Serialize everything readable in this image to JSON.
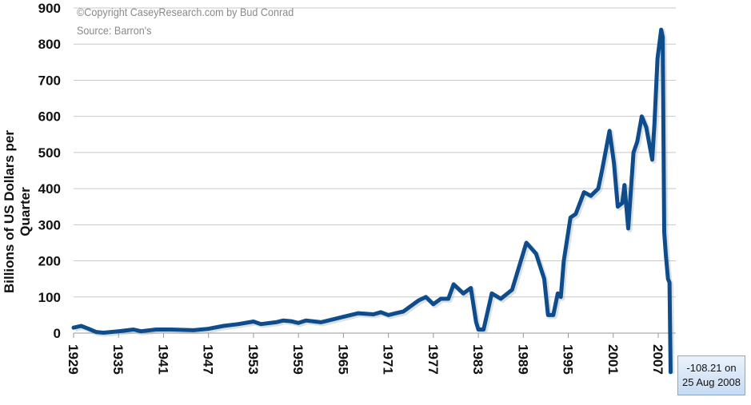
{
  "chart_data": {
    "type": "line",
    "title": "",
    "copyright": "©Copyright CaseyResearch.com by Bud Conrad",
    "source": "Source: Barron's",
    "xlabel": "",
    "ylabel": "Billions of US Dollars per Quarter",
    "ylim": [
      0,
      900
    ],
    "xlim": [
      1929,
      2009
    ],
    "yticks": [
      "0",
      "100",
      "200",
      "300",
      "400",
      "500",
      "600",
      "700",
      "800",
      "900"
    ],
    "xticks": [
      "1929",
      "1935",
      "1941",
      "1947",
      "1953",
      "1959",
      "1965",
      "1971",
      "1977",
      "1983",
      "1989",
      "1995",
      "2001",
      "2007"
    ],
    "grid": true,
    "line_color": "#0f4c8c",
    "annotation": {
      "line1": "-108.21 on",
      "line2": "25 Aug 2008"
    },
    "series": [
      {
        "name": "Billions of US Dollars per Quarter",
        "x": [
          1929,
          1930,
          1931,
          1932,
          1933,
          1934,
          1935,
          1937,
          1938,
          1940,
          1942,
          1945,
          1947,
          1949,
          1951,
          1953,
          1954,
          1956,
          1957,
          1958,
          1959,
          1960,
          1962,
          1963,
          1965,
          1967,
          1969,
          1970,
          1971,
          1972,
          1973,
          1974,
          1975,
          1976,
          1977,
          1978,
          1979,
          1979.7,
          1981,
          1982,
          1982.7,
          1983,
          1983.7,
          1984.8,
          1986,
          1987.5,
          1989.4,
          1990.7,
          1991.8,
          1992.3,
          1993,
          1993.6,
          1994,
          1994.4,
          1995.3,
          1996,
          1997.1,
          1998,
          1999,
          1999.5,
          2000.5,
          2001.1,
          2001.6,
          2002.2,
          2002.5,
          2003,
          2003.7,
          2004.2,
          2004.8,
          2005.4,
          2006.2,
          2006.5,
          2006.9,
          2007.4,
          2007.6,
          2007.8,
          2008.0,
          2008.3,
          2008.5,
          2008.65
        ],
        "values": [
          15,
          20,
          12,
          3,
          1,
          3,
          5,
          10,
          5,
          10,
          10,
          8,
          12,
          20,
          25,
          32,
          25,
          30,
          35,
          33,
          28,
          35,
          30,
          35,
          45,
          55,
          52,
          58,
          50,
          55,
          60,
          75,
          90,
          100,
          80,
          95,
          95,
          135,
          110,
          125,
          30,
          10,
          10,
          110,
          95,
          120,
          250,
          220,
          150,
          50,
          50,
          110,
          100,
          200,
          320,
          330,
          390,
          380,
          400,
          450,
          560,
          470,
          350,
          360,
          410,
          290,
          500,
          530,
          600,
          570,
          480,
          580,
          760,
          840,
          820,
          280,
          220,
          150,
          140,
          -108.21
        ]
      }
    ]
  }
}
